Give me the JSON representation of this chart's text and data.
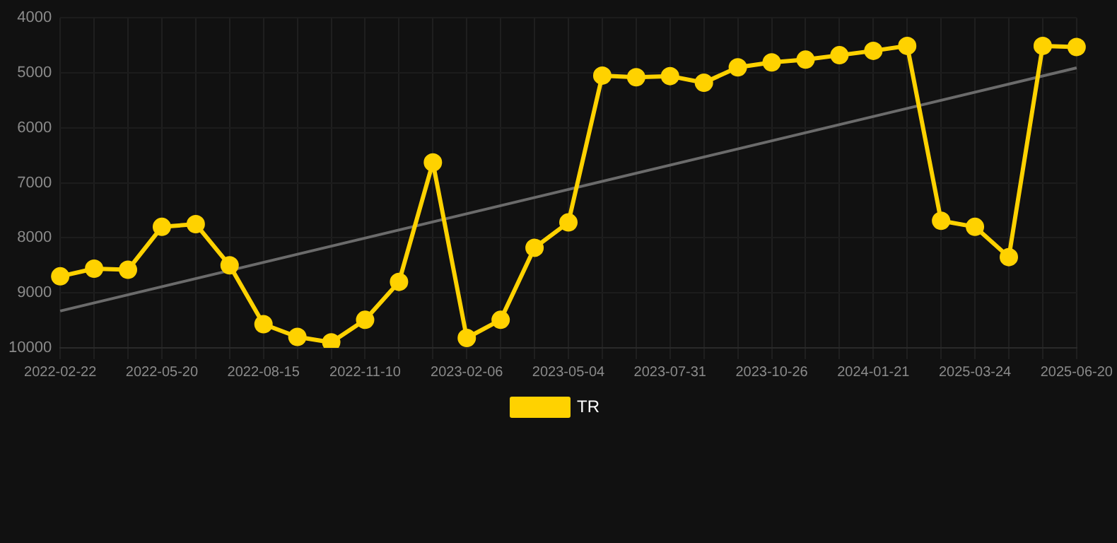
{
  "chart_data": {
    "type": "line",
    "categories": [
      "2022-02-22",
      null,
      null,
      "2022-05-20",
      null,
      null,
      "2022-08-15",
      null,
      null,
      "2022-11-10",
      null,
      null,
      "2023-02-06",
      null,
      null,
      "2023-05-04",
      null,
      null,
      "2023-07-31",
      null,
      null,
      "2023-10-26",
      null,
      null,
      "2024-01-21",
      null,
      null,
      "2025-03-24",
      null,
      null,
      "2025-06-20"
    ],
    "series": [
      {
        "name": "TR",
        "color": "#ffd200",
        "values": [
          8700,
          8560,
          8580,
          7800,
          7750,
          8500,
          9570,
          9800,
          9900,
          9490,
          8800,
          6630,
          9820,
          9490,
          8180,
          7720,
          5050,
          5080,
          5060,
          5180,
          4900,
          4810,
          4760,
          4680,
          4600,
          4510,
          7690,
          7800,
          8350,
          4510,
          4530
        ]
      },
      {
        "type": "line",
        "color": "#6b6b6b",
        "marker": "none",
        "values": [
          9330,
          null,
          null,
          null,
          null,
          null,
          null,
          null,
          null,
          null,
          null,
          null,
          null,
          null,
          null,
          null,
          null,
          null,
          null,
          null,
          null,
          null,
          null,
          null,
          null,
          null,
          null,
          null,
          null,
          null,
          4910
        ]
      }
    ],
    "ylim": [
      10000,
      4000
    ],
    "yticks": [
      4000,
      5000,
      6000,
      7000,
      8000,
      9000,
      10000
    ],
    "grid": true,
    "legend": "bottom",
    "marker": "circle",
    "line_style": "solid"
  }
}
